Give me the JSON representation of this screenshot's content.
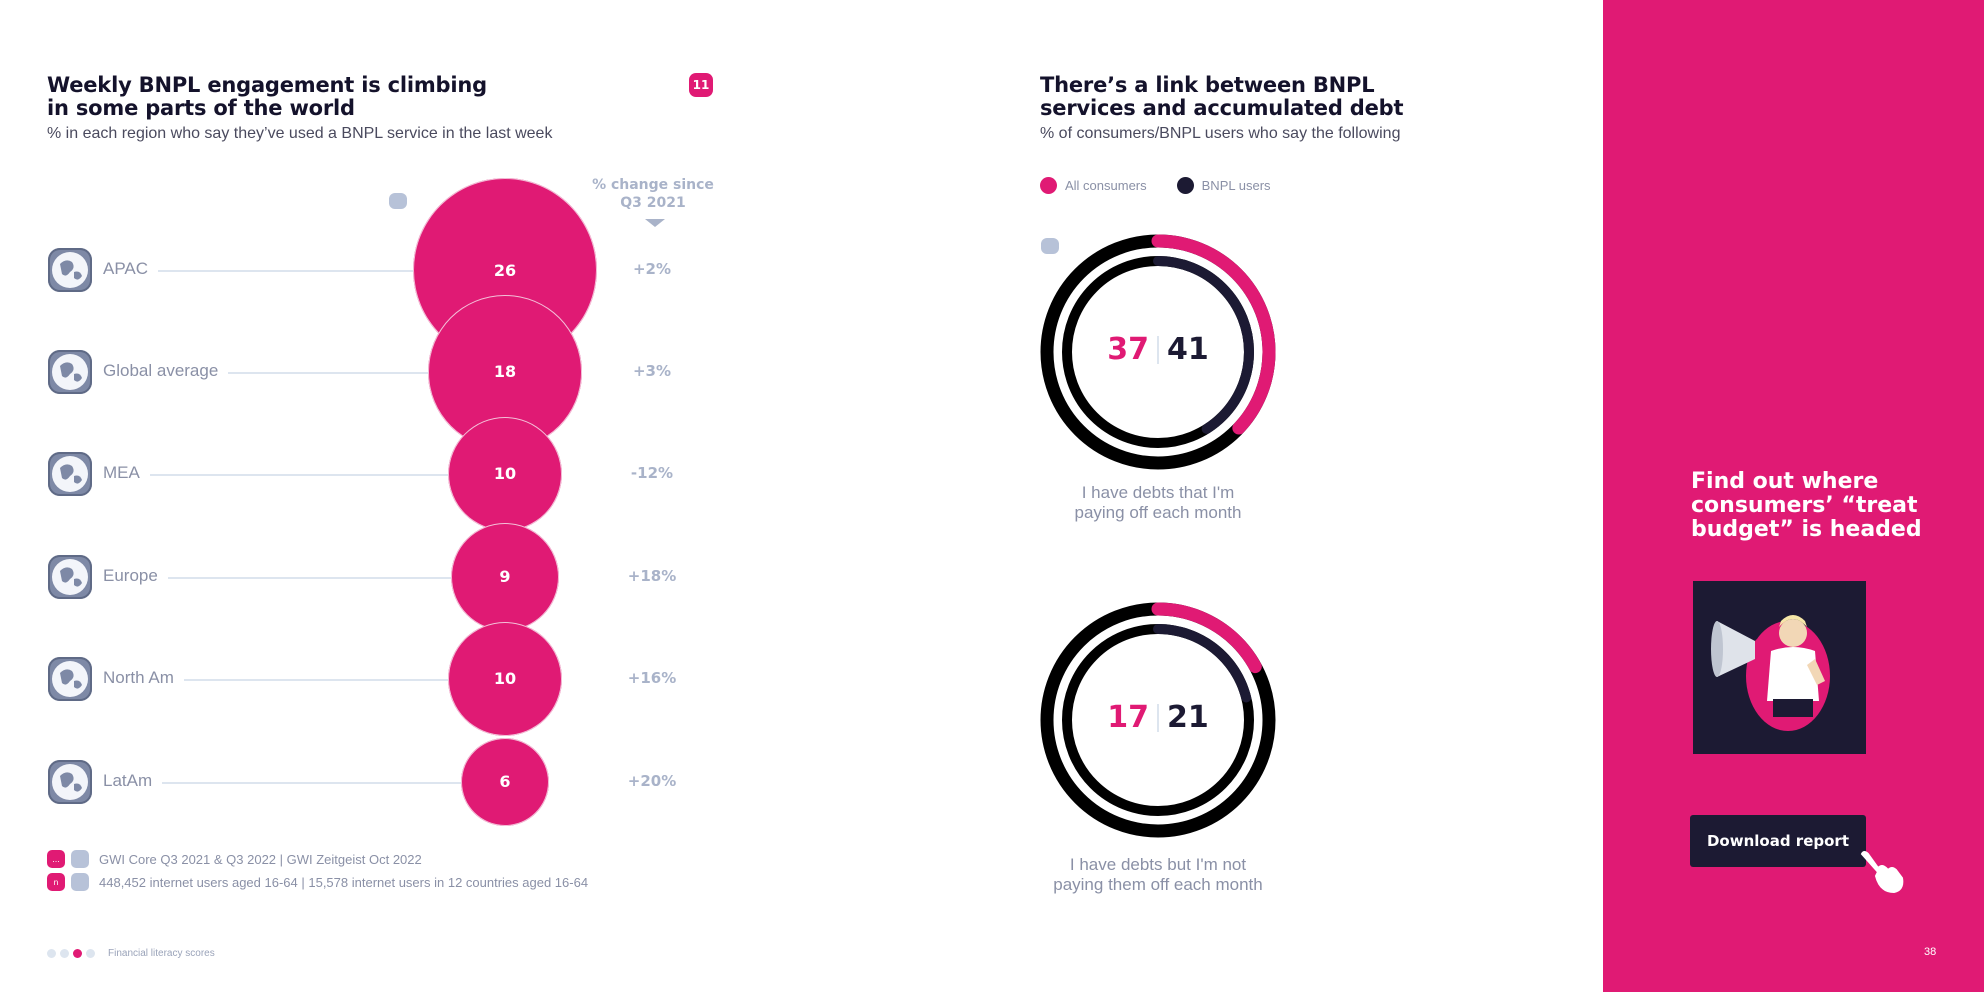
{
  "left": {
    "title_line1": "Weekly BNPL engagement is climbing",
    "title_line2": "in some parts of the world",
    "subtitle": "% in each region who say they’ve used a BNPL service in the last week",
    "badge": "11",
    "change_header_line1": "% change since",
    "change_header_line2": "Q3 2021",
    "sources": [
      {
        "tag": "...",
        "text": "GWI Core Q3 2021 & Q3 2022 | GWI Zeitgeist Oct 2022"
      },
      {
        "tag": "n",
        "text": "448,452 internet users aged 16-64 | 15,578 internet users in 12 countries aged 16-64"
      }
    ]
  },
  "right": {
    "title_line1": "There’s a link between BNPL",
    "title_line2": "services and accumulated debt",
    "subtitle": "% of consumers/BNPL users who say the following",
    "legend": [
      {
        "label": "All consumers",
        "color": "#e01a74"
      },
      {
        "label": "BNPL users",
        "color": "#1c1a33"
      }
    ]
  },
  "panel": {
    "promo_line1": "Find out where",
    "promo_line2": "consumers’ “treat",
    "promo_line3": "budget” is headed",
    "button": "Download report",
    "page_number": "38"
  },
  "footer": {
    "nav_label": "Financial literacy scores"
  },
  "colors": {
    "accent": "#e01a74",
    "dark": "#1c1a33",
    "muted": "#a9b3c9"
  },
  "chart_data": [
    {
      "type": "bubble",
      "categories": [
        "APAC",
        "Global average",
        "MEA",
        "Europe",
        "North Am",
        "LatAm"
      ],
      "values": [
        26,
        18,
        10,
        9,
        10,
        6
      ],
      "value_labels": [
        "26",
        "18",
        "10",
        "9",
        "10",
        "6"
      ],
      "change": [
        "+2%",
        "+3%",
        "-12%",
        "+18%",
        "+16%",
        "+20%"
      ],
      "title": "Weekly BNPL engagement is climbing in some parts of the world"
    },
    {
      "type": "donut",
      "donuts": [
        {
          "label_line1": "I have debts that I'm",
          "label_line2": "paying off each month",
          "all_consumers": 37,
          "bnpl_users": 41,
          "all_label": "37",
          "bnpl_label": "41"
        },
        {
          "label_line1": "I have debts but I'm not",
          "label_line2": "paying them off each month",
          "all_consumers": 17,
          "bnpl_users": 21,
          "all_label": "17",
          "bnpl_label": "21"
        }
      ],
      "series": [
        {
          "name": "All consumers"
        },
        {
          "name": "BNPL users"
        }
      ]
    }
  ]
}
